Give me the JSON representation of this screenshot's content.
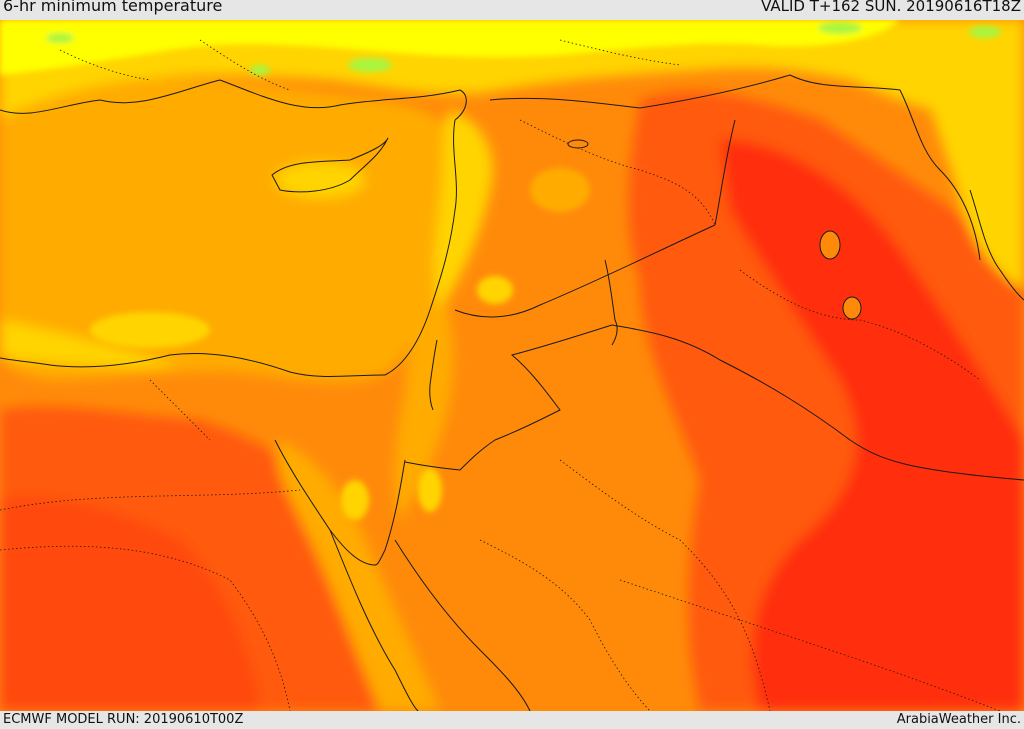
{
  "header": {
    "title": "6-hr minimum temperature",
    "valid": "VALID T+162 SUN. 20190616T18Z"
  },
  "footer": {
    "model_run": "ECMWF MODEL RUN: 20190610T00Z",
    "credit": "ArabiaWeather Inc."
  },
  "palette": {
    "very_warm_red": "#ff2e0a",
    "hot_red_orange": "#ff5a0a",
    "warm_orange": "#ff8a0a",
    "mild_orange": "#ffab06",
    "cool_yellow": "#ffd400",
    "cooler_yellow": "#ffff00",
    "cold_green": "#a8f540",
    "border_line": "#1a1a1a"
  }
}
